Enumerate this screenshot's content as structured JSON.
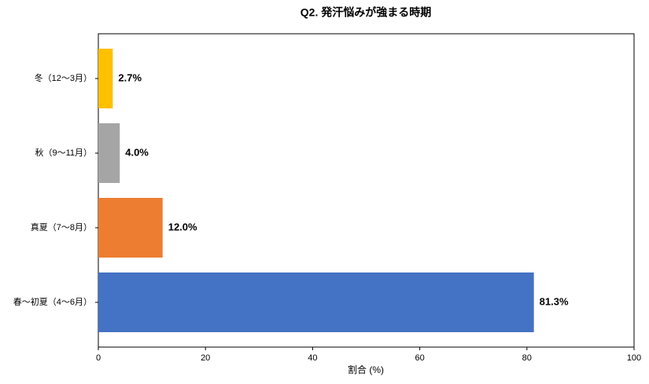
{
  "chart_data": {
    "type": "barh",
    "title": "Q2. 発汗悩みが強まる時期",
    "xlabel": "割合 (%)",
    "categories": [
      "冬（12〜3月）",
      "秋（9〜11月）",
      "真夏（7〜8月）",
      "春〜初夏（4〜6月）"
    ],
    "values": [
      2.7,
      4.0,
      12.0,
      81.3
    ],
    "value_labels": [
      "2.7%",
      "4.0%",
      "12.0%",
      "81.3%"
    ],
    "colors": [
      "#ffc000",
      "#a5a5a5",
      "#ed7d31",
      "#4472c4"
    ],
    "xlim": [
      0,
      100
    ],
    "xticks": [
      0,
      20,
      40,
      60,
      80,
      100
    ]
  }
}
